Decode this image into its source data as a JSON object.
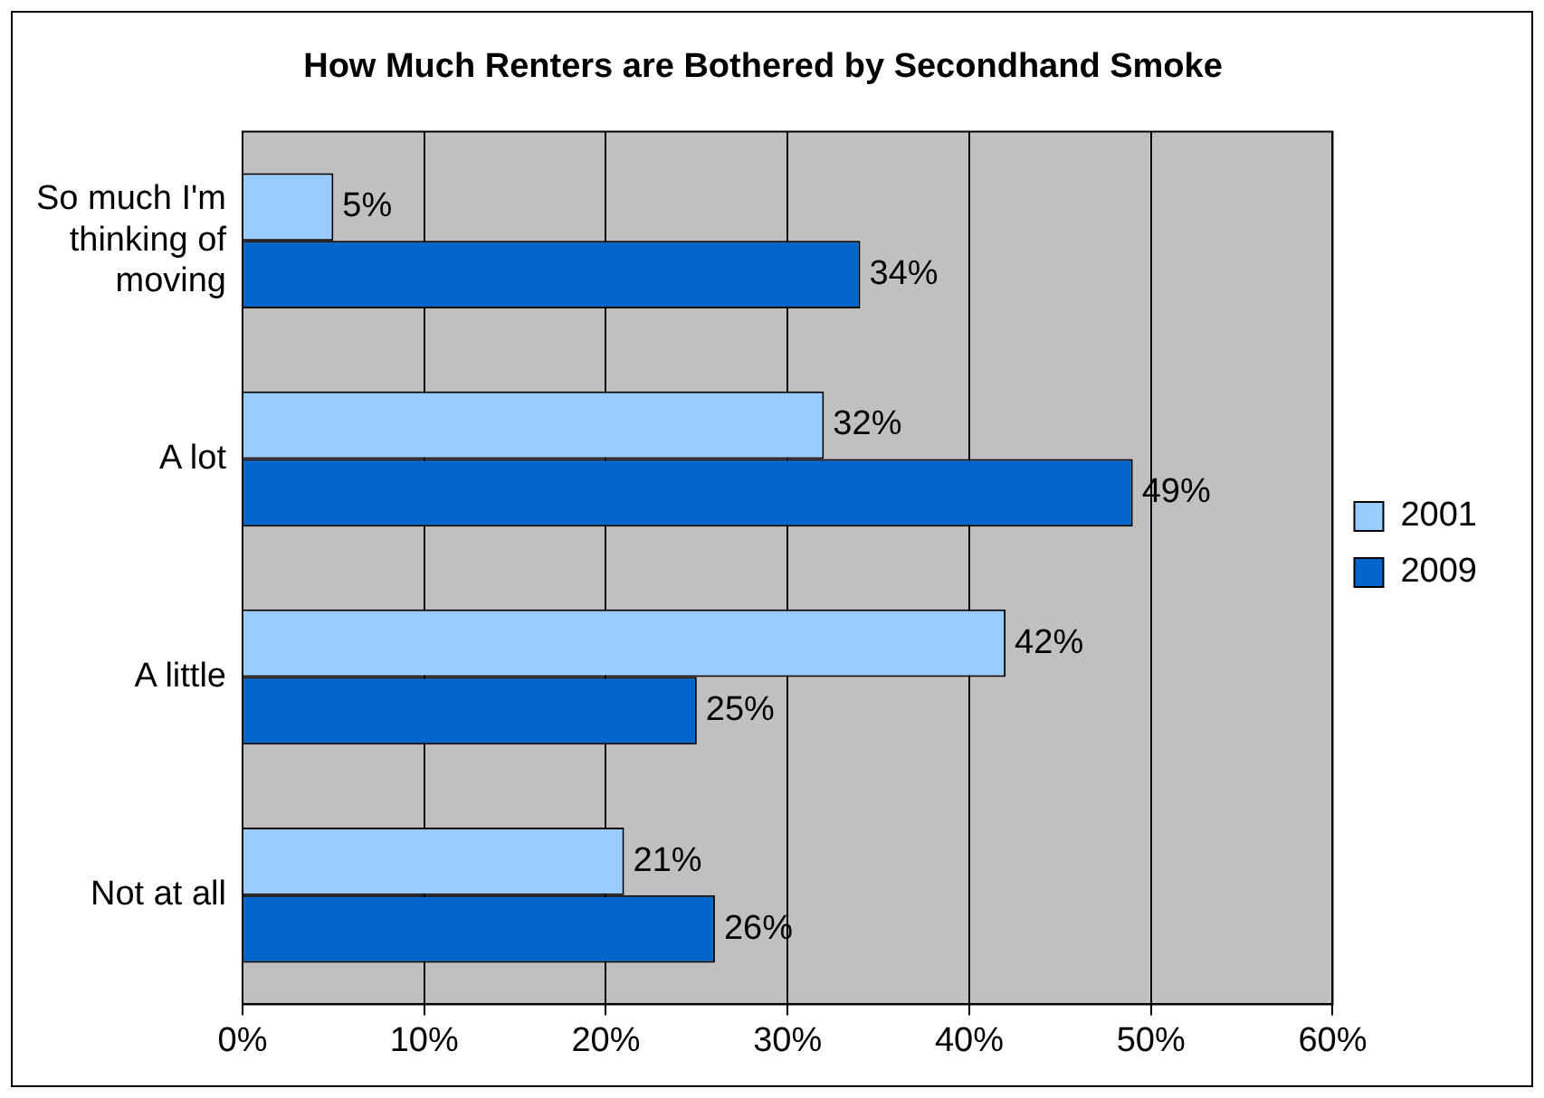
{
  "chart_data": {
    "type": "bar",
    "orientation": "horizontal",
    "title": "How Much Renters are Bothered by Secondhand Smoke",
    "categories": [
      "So much I'm thinking of moving",
      "A lot",
      "A little",
      "Not at all"
    ],
    "series": [
      {
        "name": "2001",
        "color": "#99ccff",
        "values": [
          5,
          32,
          42,
          21
        ],
        "value_labels": [
          "5%",
          "32%",
          "42%",
          "21%"
        ]
      },
      {
        "name": "2009",
        "color": "#0066cc",
        "values": [
          34,
          49,
          25,
          26
        ],
        "value_labels": [
          "34%",
          "49%",
          "25%",
          "26%"
        ]
      }
    ],
    "xlim": [
      0,
      60
    ],
    "xticks": [
      {
        "value": 0,
        "label": "0%"
      },
      {
        "value": 10,
        "label": "10%"
      },
      {
        "value": 20,
        "label": "20%"
      },
      {
        "value": 30,
        "label": "30%"
      },
      {
        "value": 40,
        "label": "40%"
      },
      {
        "value": 50,
        "label": "50%"
      },
      {
        "value": 60,
        "label": "60%"
      }
    ],
    "grid": "x",
    "legend": "right"
  }
}
